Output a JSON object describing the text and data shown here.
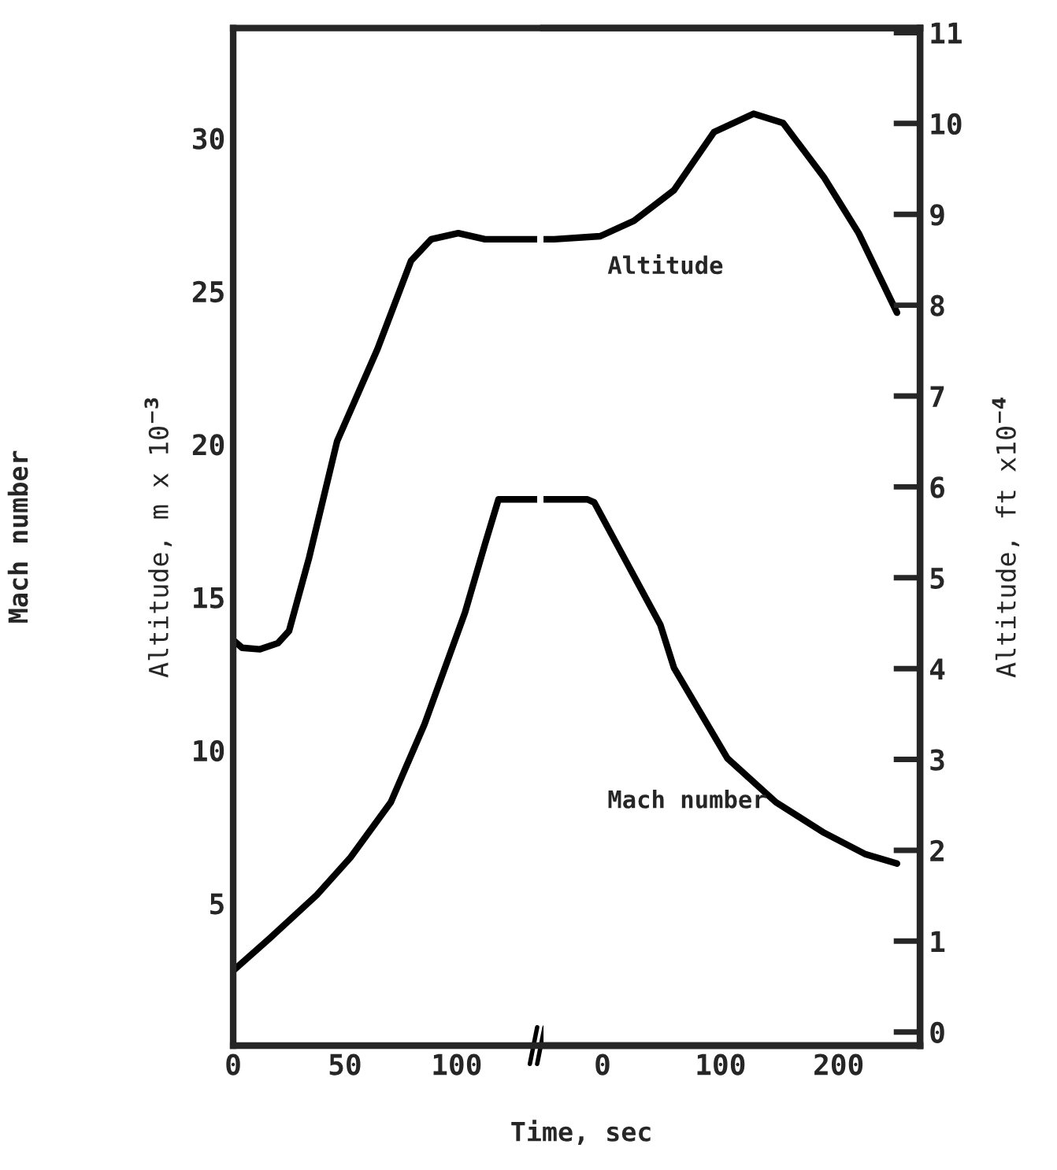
{
  "chart_data": [
    {
      "type": "line",
      "xlabel": "Time, sec",
      "ylabel": "Altitude, m x 10$^{−3}$",
      "annotations": [
        "Mach number"
      ],
      "xlim": [
        0,
        136
      ],
      "xticks": [
        0,
        50,
        100
      ],
      "ylim": [
        0.35,
        33.6
      ],
      "yticks": [
        5,
        10,
        15,
        20,
        25,
        30
      ],
      "grid": false,
      "legend": false,
      "series": [
        {
          "color": "#000000",
          "x": [
            0,
            4,
            11.8,
            20,
            25,
            34,
            46.5,
            64.5,
            79.6,
            88.6,
            100.7,
            112.7,
            136
          ],
          "values": [
            13.6,
            13.35,
            13.3,
            13.5,
            13.9,
            16.3,
            20.1,
            23.1,
            26.0,
            26.7,
            26.9,
            26.7,
            26.7
          ]
        },
        {
          "color": "#000000",
          "x": [
            0,
            16.3,
            37.4,
            52.5,
            70.5,
            85.6,
            103.7,
            112.7,
            118.7,
            136
          ],
          "values": [
            2.8,
            3.85,
            5.27,
            6.5,
            8.3,
            10.85,
            14.5,
            16.75,
            18.2,
            18.2
          ]
        }
      ]
    },
    {
      "type": "line",
      "xlim": [
        -50,
        269
      ],
      "xticks": [
        0,
        100,
        200
      ],
      "ylim": [
        0.35,
        33.6
      ],
      "y2lim": [
        -0.15,
        11.05
      ],
      "y2ticks": [
        0,
        1,
        2,
        3,
        4,
        5,
        6,
        7,
        8,
        9,
        10,
        11
      ],
      "y2label": "Altitude, ft x10$^{−4}$",
      "grid": false,
      "legend": false,
      "series": [
        {
          "name": "Altitude",
          "color": "#000000",
          "x": [
            -50,
            -41,
            -2,
            26.6,
            60.5,
            94.4,
            128,
            153,
            188,
            217,
            249.5
          ],
          "values": [
            26.7,
            26.7,
            26.8,
            27.3,
            28.3,
            30.2,
            30.8,
            30.5,
            28.7,
            26.9,
            24.3
          ]
        },
        {
          "name": "Mach number",
          "color": "#000000",
          "x": [
            -50,
            -12.8,
            -7,
            21,
            49,
            60.5,
            105.8,
            147,
            188,
            223,
            249.5
          ],
          "values": [
            18.2,
            18.2,
            18.1,
            16.1,
            14.1,
            12.7,
            9.74,
            8.3,
            7.3,
            6.6,
            6.3
          ]
        }
      ]
    }
  ]
}
